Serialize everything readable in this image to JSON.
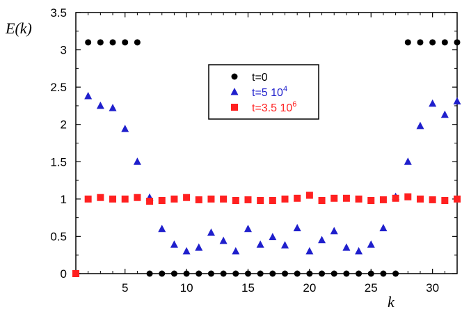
{
  "chart_data": {
    "type": "scatter",
    "ylabel": "E(k)",
    "xlabel": "k",
    "xlim": [
      1,
      32
    ],
    "ylim": [
      0,
      3.5
    ],
    "x_ticks": [
      5,
      10,
      15,
      20,
      25,
      30
    ],
    "y_ticks": [
      0,
      0.5,
      1,
      1.5,
      2,
      2.5,
      3,
      3.5
    ],
    "y_tick_labels": [
      "0",
      "0.5",
      "1",
      "1.5",
      "2",
      "2.5",
      "3",
      "3.5"
    ],
    "grid": false,
    "legend_position": "upper-center",
    "series": [
      {
        "name": "t=0",
        "name_base": "t=0",
        "name_exp": "",
        "marker": "circle",
        "color": "#000000",
        "x": [
          2,
          3,
          4,
          5,
          6,
          7,
          8,
          9,
          10,
          11,
          12,
          13,
          14,
          15,
          16,
          17,
          18,
          19,
          20,
          21,
          22,
          23,
          24,
          25,
          26,
          27,
          28,
          29,
          30,
          31,
          32
        ],
        "y": [
          3.1,
          3.1,
          3.1,
          3.1,
          3.1,
          0,
          0,
          0,
          0,
          0,
          0,
          0,
          0,
          0,
          0,
          0,
          0,
          0,
          0,
          0,
          0,
          0,
          0,
          0,
          0,
          0,
          3.1,
          3.1,
          3.1,
          3.1,
          3.1
        ]
      },
      {
        "name": "t=5 10^4",
        "name_base": "t=5 10",
        "name_exp": "4",
        "marker": "triangle",
        "color": "#1f1fcc",
        "x": [
          2,
          3,
          4,
          5,
          6,
          7,
          8,
          9,
          10,
          11,
          12,
          13,
          14,
          15,
          16,
          17,
          18,
          19,
          20,
          21,
          22,
          23,
          24,
          25,
          26,
          27,
          28,
          29,
          30,
          31,
          32
        ],
        "y": [
          2.38,
          2.25,
          2.22,
          1.94,
          1.5,
          1.02,
          0.6,
          0.39,
          0.3,
          0.35,
          0.55,
          0.44,
          0.3,
          0.6,
          0.39,
          0.49,
          0.38,
          0.61,
          0.3,
          0.45,
          0.57,
          0.35,
          0.3,
          0.39,
          0.61,
          1.03,
          1.5,
          1.98,
          2.28,
          2.13,
          2.31
        ]
      },
      {
        "name": "t=3.5 10^6",
        "name_base": "t=3.5 10",
        "name_exp": "6",
        "marker": "square",
        "color": "#ff2020",
        "x": [
          1,
          2,
          3,
          4,
          5,
          6,
          7,
          8,
          9,
          10,
          11,
          12,
          13,
          14,
          15,
          16,
          17,
          18,
          19,
          20,
          21,
          22,
          23,
          24,
          25,
          26,
          27,
          28,
          29,
          30,
          31,
          32
        ],
        "y": [
          0,
          1.0,
          1.02,
          1.0,
          1.0,
          1.02,
          0.97,
          0.98,
          1.0,
          1.02,
          0.99,
          1.0,
          1.0,
          0.98,
          0.99,
          0.98,
          0.98,
          1.0,
          1.01,
          1.05,
          0.98,
          1.01,
          1.01,
          1.0,
          0.98,
          0.99,
          1.01,
          1.03,
          1.0,
          0.99,
          0.98,
          1.0
        ]
      }
    ]
  }
}
